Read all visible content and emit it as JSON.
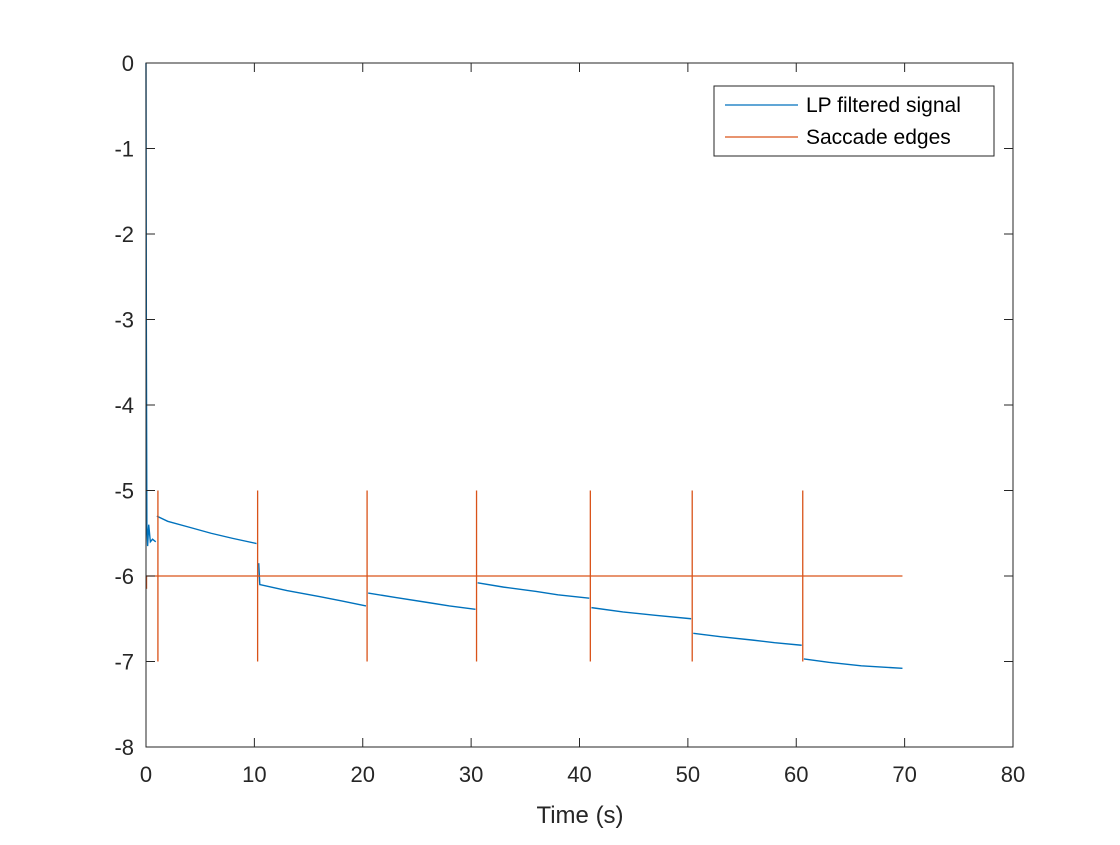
{
  "chart_data": {
    "type": "line",
    "title": "",
    "xlabel": "Time (s)",
    "ylabel": "",
    "xlim": [
      0,
      80
    ],
    "ylim": [
      -8,
      0
    ],
    "xticks": [
      0,
      10,
      20,
      30,
      40,
      50,
      60,
      70,
      80
    ],
    "yticks": [
      0,
      -1,
      -2,
      -3,
      -4,
      -5,
      -6,
      -7,
      -8
    ],
    "grid": false,
    "legend_position": "top-right",
    "series": [
      {
        "name": "LP filtered signal",
        "color": "#0072BD",
        "segments": [
          {
            "x": [
              0,
              0.03,
              0.08,
              0.15,
              0.25,
              0.4,
              0.6,
              0.9
            ],
            "y": [
              0,
              -3.0,
              -5.4,
              -5.65,
              -5.4,
              -5.6,
              -5.57,
              -5.6
            ]
          },
          {
            "x": [
              1.0,
              2,
              4,
              6,
              8,
              10.2
            ],
            "y": [
              -5.3,
              -5.36,
              -5.43,
              -5.5,
              -5.56,
              -5.62
            ]
          },
          {
            "x": [
              10.4,
              10.5,
              13,
              16,
              18,
              20.3
            ],
            "y": [
              -5.85,
              -6.1,
              -6.17,
              -6.24,
              -6.29,
              -6.35
            ]
          },
          {
            "x": [
              20.5,
              23,
              26,
              28,
              30.4
            ],
            "y": [
              -6.2,
              -6.25,
              -6.31,
              -6.35,
              -6.39
            ]
          },
          {
            "x": [
              30.6,
              33,
              36,
              38,
              40.9
            ],
            "y": [
              -6.08,
              -6.13,
              -6.18,
              -6.22,
              -6.26
            ]
          },
          {
            "x": [
              41.1,
              44,
              47,
              50.3
            ],
            "y": [
              -6.37,
              -6.42,
              -6.46,
              -6.5
            ]
          },
          {
            "x": [
              50.5,
              53,
              56,
              58,
              60.5
            ],
            "y": [
              -6.67,
              -6.71,
              -6.75,
              -6.78,
              -6.81
            ]
          },
          {
            "x": [
              60.7,
              63,
              66,
              69.8
            ],
            "y": [
              -6.97,
              -7.01,
              -7.05,
              -7.08
            ]
          }
        ]
      },
      {
        "name": "Saccade edges",
        "color": "#D95319",
        "baseline": -6,
        "x_range": [
          0,
          69.8
        ],
        "edges": [
          {
            "x": 0.05,
            "top": -6,
            "bottom": -6.15
          },
          {
            "x": 1.1,
            "top": -5,
            "bottom": -7
          },
          {
            "x": 10.3,
            "top": -5,
            "bottom": -7
          },
          {
            "x": 20.4,
            "top": -5,
            "bottom": -7
          },
          {
            "x": 30.5,
            "top": -5,
            "bottom": -7
          },
          {
            "x": 41.0,
            "top": -5,
            "bottom": -7
          },
          {
            "x": 50.4,
            "top": -5,
            "bottom": -7
          },
          {
            "x": 60.6,
            "top": -5,
            "bottom": -7
          }
        ]
      }
    ]
  }
}
